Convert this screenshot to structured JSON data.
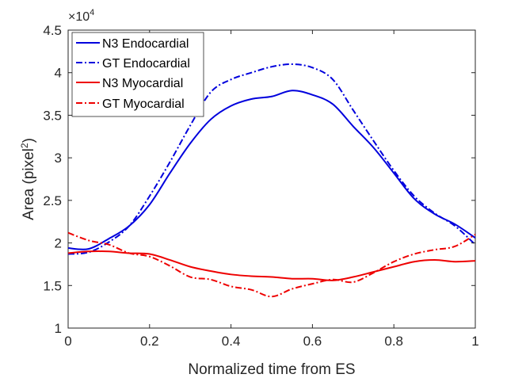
{
  "chart_data": {
    "type": "line",
    "title": "",
    "xlabel": "Normalized time from ES",
    "ylabel_main": "Area (pixel",
    "ylabel_sup": "2",
    "ylabel_close": ")",
    "y_exponent_prefix": "×10",
    "y_exponent_power": "4",
    "xlim": [
      0,
      1
    ],
    "ylim": [
      1,
      4.5
    ],
    "x_ticks": [
      0,
      0.2,
      0.4,
      0.6,
      0.8,
      1
    ],
    "x_tick_labels": [
      "0",
      "0.2",
      "0.4",
      "0.6",
      "0.8",
      "1"
    ],
    "y_ticks": [
      1,
      1.5,
      2,
      2.5,
      3,
      3.5,
      4,
      4.5
    ],
    "y_tick_labels": [
      "1",
      "1.5",
      "2",
      "2.5",
      "3",
      "3.5",
      "4",
      "4.5"
    ],
    "grid": false,
    "legend_placement": "top-left",
    "x": [
      0,
      0.05,
      0.1,
      0.15,
      0.2,
      0.25,
      0.3,
      0.35,
      0.4,
      0.45,
      0.5,
      0.55,
      0.6,
      0.65,
      0.7,
      0.75,
      0.8,
      0.85,
      0.9,
      0.95,
      1
    ],
    "series": [
      {
        "name": "N3 Endocardial",
        "color": "#0000dd",
        "dash": "solid",
        "values": [
          1.94,
          1.93,
          2.05,
          2.2,
          2.45,
          2.82,
          3.17,
          3.45,
          3.61,
          3.69,
          3.72,
          3.79,
          3.74,
          3.63,
          3.37,
          3.12,
          2.82,
          2.52,
          2.34,
          2.22,
          2.06
        ]
      },
      {
        "name": "GT Endocardial",
        "color": "#0000dd",
        "dash": "dashdot",
        "values": [
          1.87,
          1.89,
          2.01,
          2.2,
          2.55,
          2.95,
          3.38,
          3.77,
          3.92,
          4.0,
          4.07,
          4.1,
          4.06,
          3.92,
          3.56,
          3.2,
          2.85,
          2.55,
          2.35,
          2.2,
          1.98
        ]
      },
      {
        "name": "N3 Myocardial",
        "color": "#ee0000",
        "dash": "solid",
        "values": [
          1.88,
          1.9,
          1.9,
          1.88,
          1.87,
          1.8,
          1.72,
          1.67,
          1.63,
          1.61,
          1.6,
          1.58,
          1.58,
          1.56,
          1.6,
          1.66,
          1.72,
          1.78,
          1.8,
          1.78,
          1.79
        ]
      },
      {
        "name": "GT Myocardial",
        "color": "#ee0000",
        "dash": "dashdot",
        "values": [
          2.12,
          2.03,
          1.98,
          1.88,
          1.84,
          1.73,
          1.6,
          1.57,
          1.49,
          1.45,
          1.37,
          1.46,
          1.52,
          1.57,
          1.54,
          1.65,
          1.78,
          1.87,
          1.92,
          1.96,
          2.1
        ]
      }
    ]
  }
}
